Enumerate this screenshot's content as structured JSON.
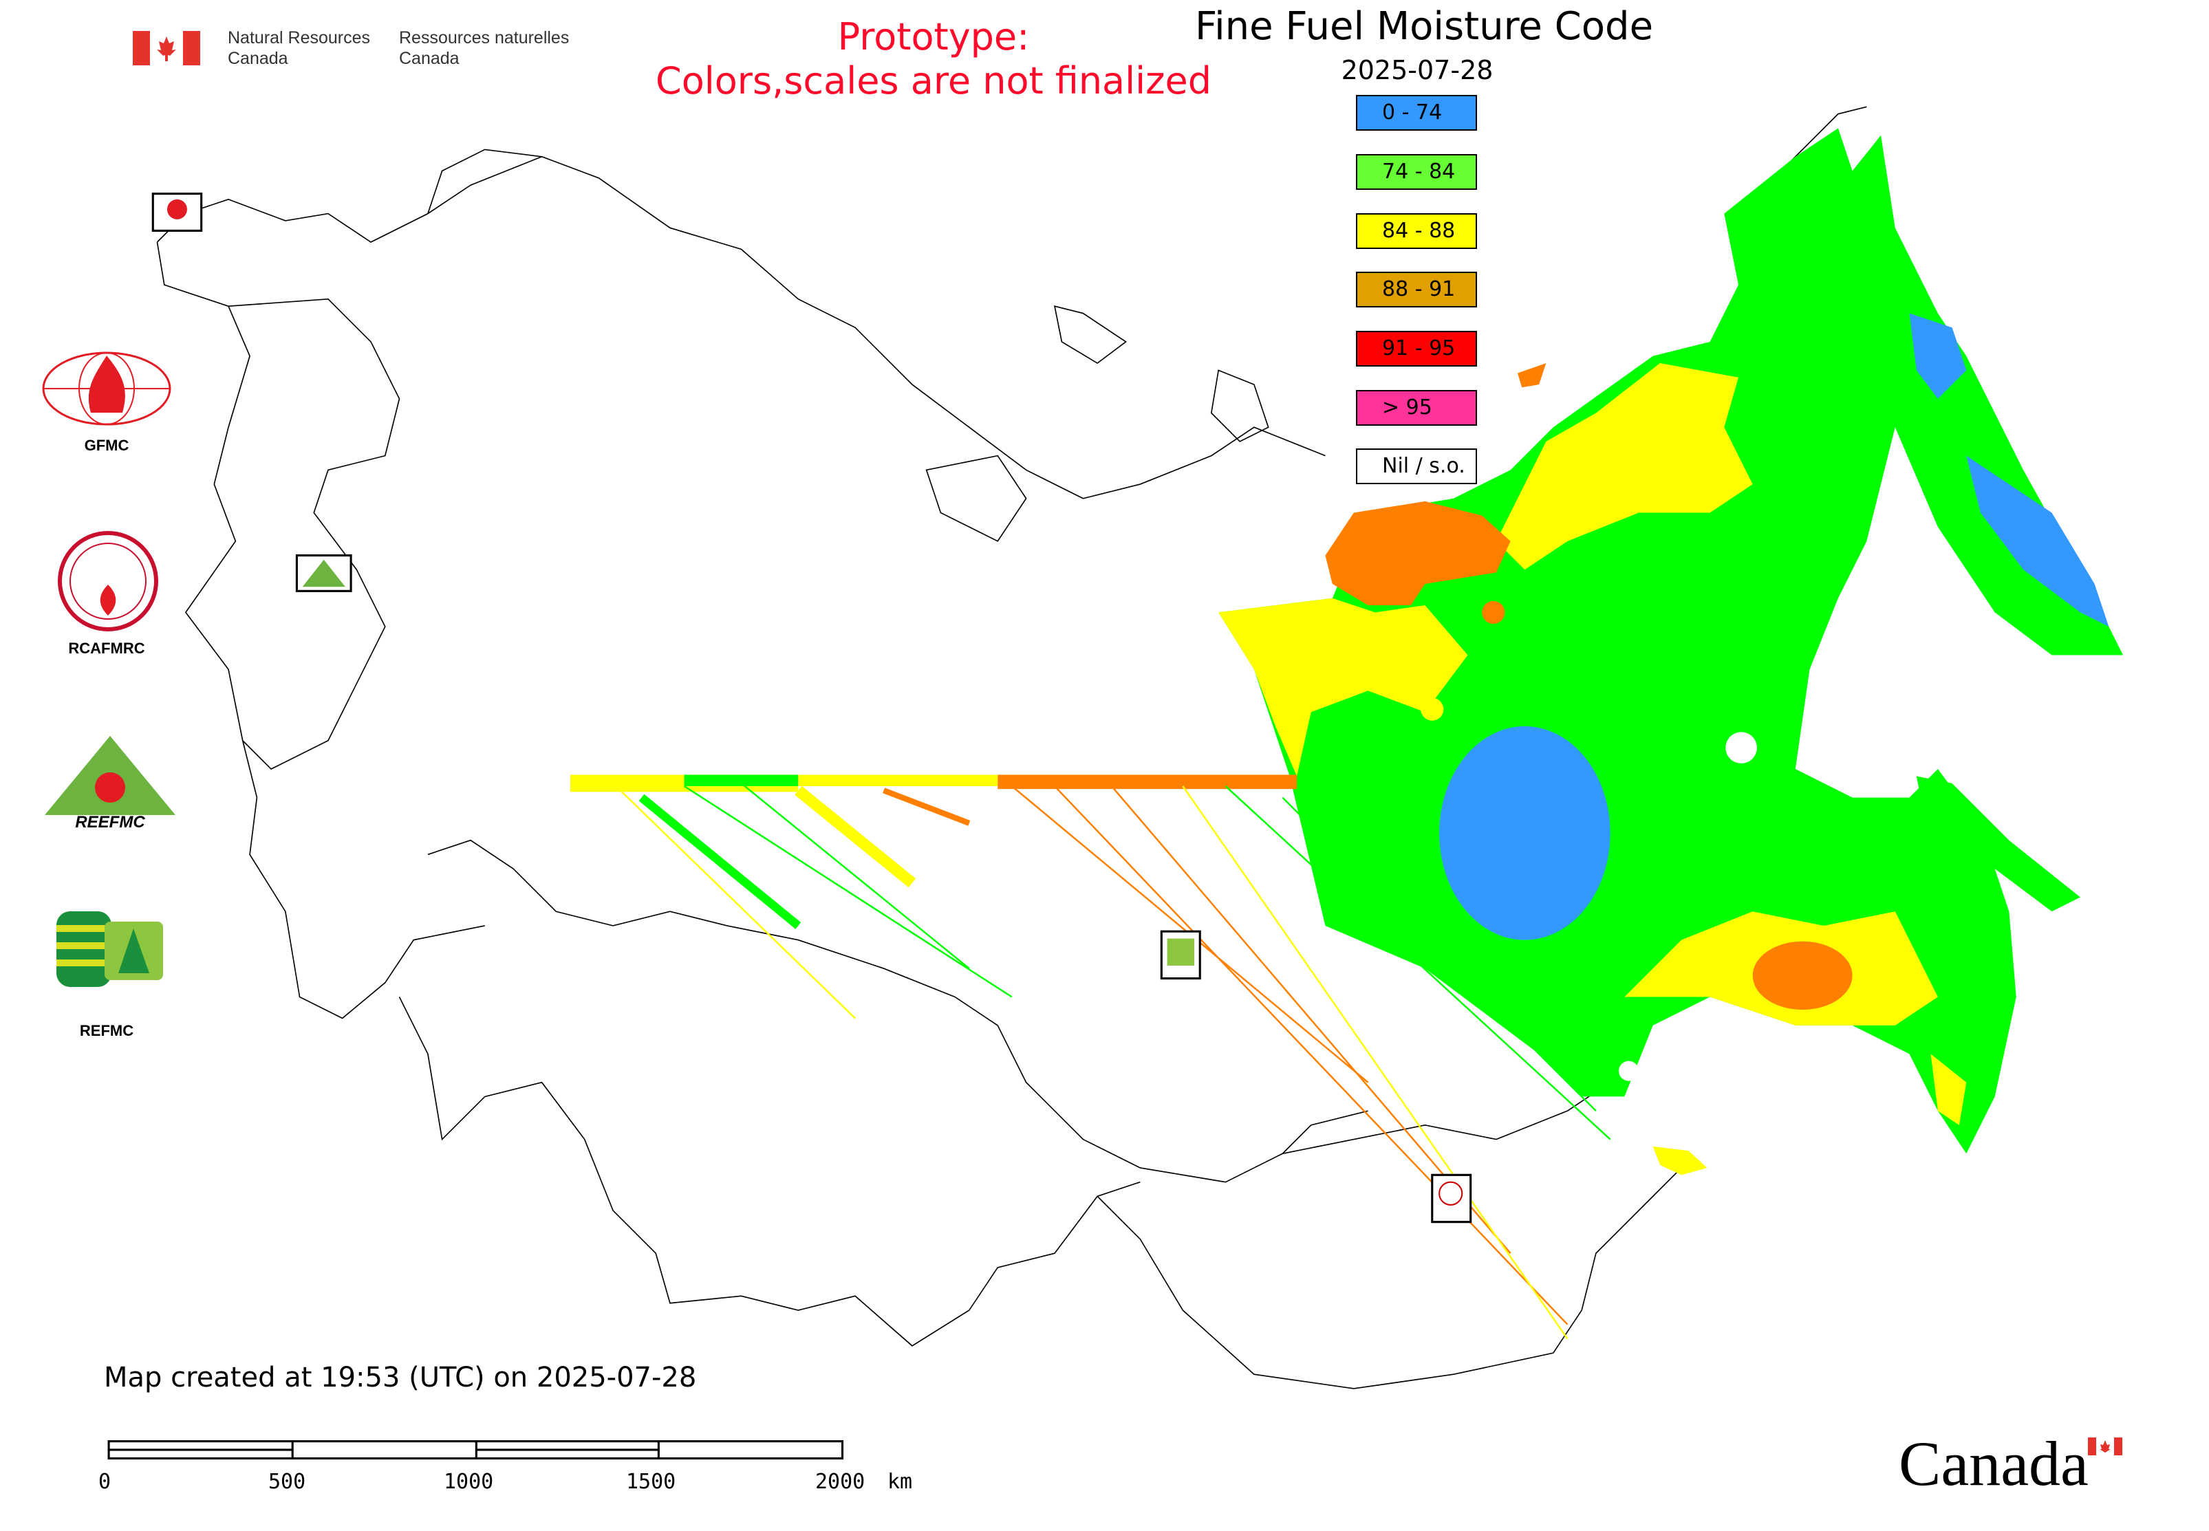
{
  "header": {
    "nrc_en_line1": "Natural Resources",
    "nrc_en_line2": "Canada",
    "nrc_fr_line1": "Ressources naturelles",
    "nrc_fr_line2": "Canada",
    "prototype_line1": "Prototype:",
    "prototype_line2": "Colors,scales are not finalized",
    "prototype_color": "#ff0a2a"
  },
  "title": "Fine Fuel Moisture Code",
  "date": "2025-07-28",
  "legend": [
    {
      "label": "0 - 74",
      "color": "#3399ff"
    },
    {
      "label": "74 - 84",
      "color": "#66ff33"
    },
    {
      "label": "84 - 88",
      "color": "#ffff00"
    },
    {
      "label": "88 - 91",
      "color": "#e0a000"
    },
    {
      "label": "91 - 95",
      "color": "#ff0000"
    },
    {
      "label": "> 95",
      "color": "#ff3399"
    },
    {
      "label": "Nil / s.o.",
      "color": "#ffffff"
    }
  ],
  "logos": {
    "gfmc": "GFMC",
    "rcafmrc": "RCAFMRC",
    "reefmc": "REEFMC",
    "refmc": "REFMC"
  },
  "footer": {
    "created": "Map created at 19:53 (UTC) on 2025-07-28",
    "scale_labels": [
      "0",
      "500",
      "1000",
      "1500",
      "2000"
    ],
    "scale_unit": "km",
    "wordmark": "Canada"
  },
  "map_colors": {
    "low": "#3399ff",
    "moderate": "#00ff00",
    "high": "#ffff00",
    "very_high": "#ff8000"
  }
}
